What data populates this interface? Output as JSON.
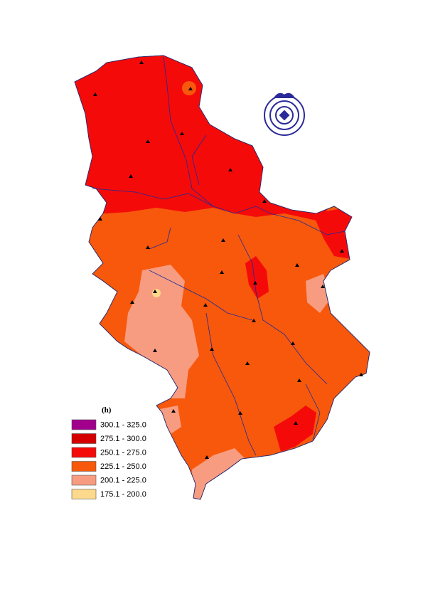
{
  "legend": {
    "title": "(h)",
    "items": [
      {
        "label": "300.1 - 325.0",
        "color": "#a0008c"
      },
      {
        "label": "275.1 - 300.0",
        "color": "#d40000"
      },
      {
        "label": "250.1 - 275.0",
        "color": "#f50a0a"
      },
      {
        "label": "225.1 - 250.0",
        "color": "#f7580c"
      },
      {
        "label": "200.1 - 225.0",
        "color": "#f79c80"
      },
      {
        "label": "175.1 - 200.0",
        "color": "#fcd98c"
      }
    ]
  }
}
